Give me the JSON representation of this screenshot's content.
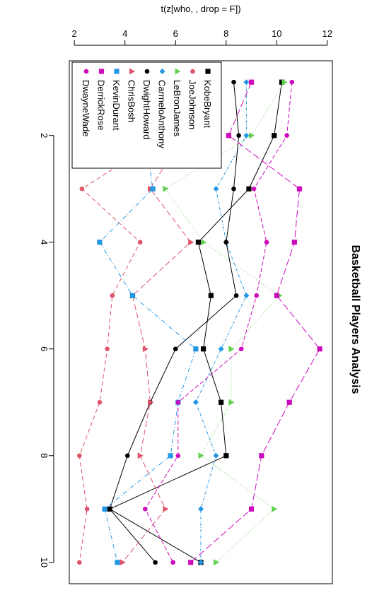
{
  "chart_data": {
    "type": "line",
    "title": "Basketball Players Analysis",
    "ylabel": "t(z[who, , drop = F])",
    "xlabel": "",
    "x": [
      1,
      2,
      3,
      4,
      5,
      6,
      7,
      8,
      9,
      10
    ],
    "x_ticks": [
      2,
      4,
      6,
      8,
      10
    ],
    "y_ticks": [
      2,
      4,
      6,
      8,
      10,
      12
    ],
    "xlim": [
      0.6,
      10.4
    ],
    "ylim": [
      1.8,
      12.2
    ],
    "orientation": "rotated-90",
    "legend_position": "top-left",
    "grid": false,
    "series": [
      {
        "name": "KobeBryant",
        "color": "#000000",
        "dash": "",
        "marker": "square",
        "values": [
          10.2,
          9.9,
          8.9,
          6.9,
          7.4,
          7.1,
          7.8,
          8.0,
          3.4,
          7.0
        ]
      },
      {
        "name": "JoeJohnson",
        "color": "#DF536B",
        "dash": "6,4",
        "marker": "circle",
        "values": [
          4.8,
          5.6,
          2.3,
          4.6,
          3.5,
          3.3,
          3.0,
          2.2,
          2.5,
          2.2
        ]
      },
      {
        "name": "LeBronJames",
        "color": "#61D04F",
        "dash": "1,3",
        "marker": "triangle",
        "values": [
          10.3,
          9.0,
          5.6,
          7.1,
          10.1,
          8.2,
          8.2,
          7.0,
          9.9,
          7.6
        ]
      },
      {
        "name": "CarmeloAnthony",
        "color": "#2297E6",
        "dash": "4,2,1,2",
        "marker": "diamond",
        "values": [
          8.8,
          8.8,
          7.6,
          8.0,
          8.8,
          7.8,
          6.8,
          7.6,
          7.0,
          7.0
        ]
      },
      {
        "name": "DwightHoward",
        "color": "#000000",
        "dash": "",
        "marker": "circle",
        "values": [
          8.3,
          8.5,
          8.3,
          8.0,
          8.4,
          6.0,
          5.0,
          4.1,
          3.4,
          5.2
        ]
      },
      {
        "name": "ChrisBosh",
        "color": "#DF536B",
        "dash": "8,4",
        "marker": "triangle",
        "values": [
          6.6,
          6.3,
          5.0,
          6.6,
          4.3,
          4.8,
          5.0,
          4.6,
          5.6,
          3.9
        ]
      },
      {
        "name": "KevinDurant",
        "color": "#2297E6",
        "dash": "6,3,1,3",
        "marker": "square",
        "values": [
          5.3,
          4.8,
          5.1,
          3.0,
          4.3,
          6.8,
          6.1,
          5.8,
          3.2,
          3.7
        ]
      },
      {
        "name": "DerrickRose",
        "color": "#CD0BBC",
        "dash": "10,4",
        "marker": "square",
        "values": [
          9.0,
          8.1,
          10.9,
          10.7,
          10.0,
          11.7,
          10.5,
          9.4,
          9.0,
          6.6
        ]
      },
      {
        "name": "DwayneWade",
        "color": "#CD0BBC",
        "dash": "6,3",
        "marker": "circle",
        "values": [
          10.6,
          10.4,
          9.1,
          9.6,
          9.2,
          8.6,
          6.1,
          6.1,
          4.8,
          5.9
        ]
      }
    ]
  }
}
